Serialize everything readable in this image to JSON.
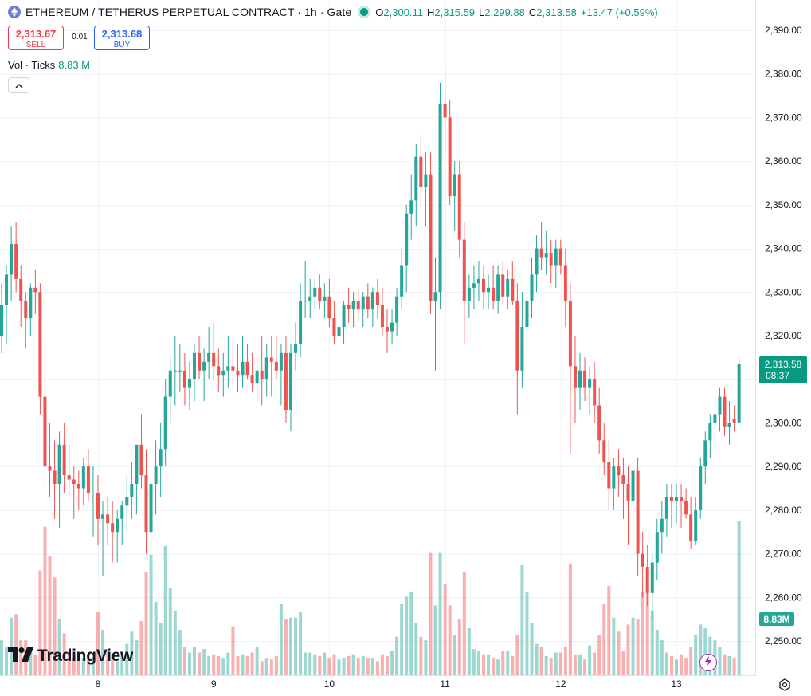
{
  "legend": {
    "symbol_title": "ETHEREUM / TETHERUS PERPETUAL CONTRACT · 1h · Gate",
    "open_label": "O",
    "open_value": "2,300.11",
    "high_label": "H",
    "high_value": "2,315.59",
    "low_label": "L",
    "low_value": "2,299.88",
    "close_label": "C",
    "close_value": "2,313.58",
    "change": "+13.47 (+0.59%)"
  },
  "trade": {
    "sell_price": "2,313.67",
    "sell_label": "SELL",
    "spread": "0.01",
    "buy_price": "2,313.68",
    "buy_label": "BUY"
  },
  "volume_legend": {
    "label": "Vol · Ticks",
    "value": "8.83 M"
  },
  "branding": {
    "logo_text": "TradingView"
  },
  "price_tag": {
    "price": "2,313.58",
    "countdown": "08:37"
  },
  "volume_tag": {
    "value": "8.83M"
  },
  "colors": {
    "up": "#26a69a",
    "down": "#ef5350",
    "up_volume": "#26a69a",
    "down_volume": "#ef5350",
    "last_price": "#089981"
  },
  "chart_data": {
    "type": "candlestick",
    "timeframe": "1h",
    "ylim": [
      2245,
      2393
    ],
    "y_ticks": [
      2250,
      2260,
      2270,
      2280,
      2290,
      2300,
      2310,
      2320,
      2330,
      2340,
      2350,
      2360,
      2370,
      2380,
      2390
    ],
    "y_tick_labels": [
      "2,250.00",
      "2,260.00",
      "2,270.00",
      "2,280.00",
      "2,290.00",
      "2,300.00",
      "2,310.00",
      "2,320.00",
      "2,330.00",
      "2,340.00",
      "2,350.00",
      "2,360.00",
      "2,370.00",
      "2,380.00",
      "2,390.00"
    ],
    "x_ticks": [
      {
        "label": "8",
        "bar": 20
      },
      {
        "label": "9",
        "bar": 44
      },
      {
        "label": "10",
        "bar": 68
      },
      {
        "label": "11",
        "bar": 92
      },
      {
        "label": "12",
        "bar": 116
      },
      {
        "label": "13",
        "bar": 140
      }
    ],
    "last_price": 2313.58,
    "grid": true,
    "bars": [
      {
        "o": 2320,
        "h": 2332,
        "l": 2316,
        "c": 2327,
        "v": 2.0
      },
      {
        "o": 2327,
        "h": 2336,
        "l": 2318,
        "c": 2334,
        "v": 1.6
      },
      {
        "o": 2334,
        "h": 2345,
        "l": 2328,
        "c": 2341,
        "v": 3.3
      },
      {
        "o": 2341,
        "h": 2346,
        "l": 2330,
        "c": 2333,
        "v": 3.5
      },
      {
        "o": 2333,
        "h": 2336,
        "l": 2322,
        "c": 2328,
        "v": 2.0
      },
      {
        "o": 2328,
        "h": 2330,
        "l": 2317,
        "c": 2324,
        "v": 2.0
      },
      {
        "o": 2324,
        "h": 2332,
        "l": 2320,
        "c": 2331,
        "v": 1.4
      },
      {
        "o": 2331,
        "h": 2335,
        "l": 2325,
        "c": 2330,
        "v": 1.2
      },
      {
        "o": 2330,
        "h": 2332,
        "l": 2302,
        "c": 2306,
        "v": 6.0
      },
      {
        "o": 2306,
        "h": 2318,
        "l": 2285,
        "c": 2290,
        "v": 8.5
      },
      {
        "o": 2290,
        "h": 2300,
        "l": 2283,
        "c": 2289,
        "v": 6.8
      },
      {
        "o": 2289,
        "h": 2296,
        "l": 2278,
        "c": 2286,
        "v": 5.6
      },
      {
        "o": 2286,
        "h": 2298,
        "l": 2276,
        "c": 2295,
        "v": 3.2
      },
      {
        "o": 2295,
        "h": 2300,
        "l": 2284,
        "c": 2288,
        "v": 2.4
      },
      {
        "o": 2288,
        "h": 2295,
        "l": 2283,
        "c": 2287,
        "v": 1.4
      },
      {
        "o": 2287,
        "h": 2290,
        "l": 2278,
        "c": 2286,
        "v": 1.0
      },
      {
        "o": 2286,
        "h": 2289,
        "l": 2280,
        "c": 2285,
        "v": 1.2
      },
      {
        "o": 2285,
        "h": 2292,
        "l": 2281,
        "c": 2290,
        "v": 1.0
      },
      {
        "o": 2290,
        "h": 2294,
        "l": 2282,
        "c": 2284,
        "v": 0.9
      },
      {
        "o": 2284,
        "h": 2290,
        "l": 2274,
        "c": 2284,
        "v": 0.8
      },
      {
        "o": 2284,
        "h": 2288,
        "l": 2272,
        "c": 2278,
        "v": 3.6
      },
      {
        "o": 2278,
        "h": 2282,
        "l": 2265,
        "c": 2279,
        "v": 2.6
      },
      {
        "o": 2279,
        "h": 2283,
        "l": 2272,
        "c": 2277,
        "v": 1.4
      },
      {
        "o": 2277,
        "h": 2282,
        "l": 2268,
        "c": 2275,
        "v": 1.2
      },
      {
        "o": 2275,
        "h": 2280,
        "l": 2268,
        "c": 2278,
        "v": 0.8
      },
      {
        "o": 2278,
        "h": 2282,
        "l": 2272,
        "c": 2281,
        "v": 1.2
      },
      {
        "o": 2281,
        "h": 2288,
        "l": 2275,
        "c": 2283,
        "v": 1.8
      },
      {
        "o": 2283,
        "h": 2291,
        "l": 2278,
        "c": 2286,
        "v": 2.5
      },
      {
        "o": 2286,
        "h": 2295,
        "l": 2279,
        "c": 2295,
        "v": 2.0
      },
      {
        "o": 2295,
        "h": 2302,
        "l": 2285,
        "c": 2288,
        "v": 3.1
      },
      {
        "o": 2288,
        "h": 2294,
        "l": 2270,
        "c": 2275,
        "v": 5.9
      },
      {
        "o": 2275,
        "h": 2288,
        "l": 2272,
        "c": 2286,
        "v": 6.9
      },
      {
        "o": 2286,
        "h": 2296,
        "l": 2279,
        "c": 2290,
        "v": 4.2
      },
      {
        "o": 2290,
        "h": 2300,
        "l": 2283,
        "c": 2294,
        "v": 3.0
      },
      {
        "o": 2294,
        "h": 2310,
        "l": 2290,
        "c": 2306,
        "v": 7.4
      },
      {
        "o": 2306,
        "h": 2315,
        "l": 2300,
        "c": 2312,
        "v": 5.0
      },
      {
        "o": 2312,
        "h": 2320,
        "l": 2304,
        "c": 2312,
        "v": 3.7
      },
      {
        "o": 2312,
        "h": 2318,
        "l": 2307,
        "c": 2312,
        "v": 2.6
      },
      {
        "o": 2312,
        "h": 2316,
        "l": 2304,
        "c": 2308,
        "v": 1.6
      },
      {
        "o": 2308,
        "h": 2314,
        "l": 2303,
        "c": 2310,
        "v": 1.3
      },
      {
        "o": 2310,
        "h": 2318,
        "l": 2305,
        "c": 2316,
        "v": 1.6
      },
      {
        "o": 2316,
        "h": 2320,
        "l": 2310,
        "c": 2312,
        "v": 1.3
      },
      {
        "o": 2312,
        "h": 2317,
        "l": 2305,
        "c": 2314,
        "v": 1.5
      },
      {
        "o": 2314,
        "h": 2322,
        "l": 2310,
        "c": 2316,
        "v": 1.1
      },
      {
        "o": 2316,
        "h": 2323,
        "l": 2310,
        "c": 2313,
        "v": 1.2
      },
      {
        "o": 2313,
        "h": 2317,
        "l": 2307,
        "c": 2311,
        "v": 1.1
      },
      {
        "o": 2311,
        "h": 2316,
        "l": 2306,
        "c": 2312,
        "v": 1.0
      },
      {
        "o": 2312,
        "h": 2320,
        "l": 2308,
        "c": 2313,
        "v": 1.3
      },
      {
        "o": 2313,
        "h": 2319,
        "l": 2308,
        "c": 2312,
        "v": 2.8
      },
      {
        "o": 2312,
        "h": 2318,
        "l": 2307,
        "c": 2311,
        "v": 1.1
      },
      {
        "o": 2311,
        "h": 2320,
        "l": 2308,
        "c": 2314,
        "v": 1.2
      },
      {
        "o": 2314,
        "h": 2318,
        "l": 2310,
        "c": 2311,
        "v": 1.1
      },
      {
        "o": 2311,
        "h": 2316,
        "l": 2307,
        "c": 2309,
        "v": 1.3
      },
      {
        "o": 2309,
        "h": 2315,
        "l": 2305,
        "c": 2312,
        "v": 1.6
      },
      {
        "o": 2312,
        "h": 2320,
        "l": 2304,
        "c": 2310,
        "v": 0.8
      },
      {
        "o": 2310,
        "h": 2318,
        "l": 2306,
        "c": 2315,
        "v": 1.0
      },
      {
        "o": 2315,
        "h": 2320,
        "l": 2306,
        "c": 2314,
        "v": 0.9
      },
      {
        "o": 2314,
        "h": 2320,
        "l": 2310,
        "c": 2312,
        "v": 1.1
      },
      {
        "o": 2312,
        "h": 2318,
        "l": 2304,
        "c": 2316,
        "v": 4.1
      },
      {
        "o": 2316,
        "h": 2320,
        "l": 2300,
        "c": 2303,
        "v": 3.2
      },
      {
        "o": 2303,
        "h": 2318,
        "l": 2298,
        "c": 2316,
        "v": 3.3
      },
      {
        "o": 2316,
        "h": 2323,
        "l": 2312,
        "c": 2318,
        "v": 3.3
      },
      {
        "o": 2318,
        "h": 2332,
        "l": 2315,
        "c": 2328,
        "v": 3.6
      },
      {
        "o": 2328,
        "h": 2337,
        "l": 2324,
        "c": 2328,
        "v": 1.3
      },
      {
        "o": 2328,
        "h": 2333,
        "l": 2324,
        "c": 2329,
        "v": 1.3
      },
      {
        "o": 2329,
        "h": 2333,
        "l": 2326,
        "c": 2331,
        "v": 1.2
      },
      {
        "o": 2331,
        "h": 2334,
        "l": 2326,
        "c": 2328,
        "v": 1.1
      },
      {
        "o": 2328,
        "h": 2332,
        "l": 2324,
        "c": 2329,
        "v": 1.3
      },
      {
        "o": 2329,
        "h": 2333,
        "l": 2322,
        "c": 2324,
        "v": 1.0
      },
      {
        "o": 2324,
        "h": 2328,
        "l": 2318,
        "c": 2320,
        "v": 1.2
      },
      {
        "o": 2320,
        "h": 2325,
        "l": 2316,
        "c": 2322,
        "v": 0.9
      },
      {
        "o": 2322,
        "h": 2328,
        "l": 2318,
        "c": 2327,
        "v": 1.0
      },
      {
        "o": 2327,
        "h": 2331,
        "l": 2323,
        "c": 2326,
        "v": 1.1
      },
      {
        "o": 2326,
        "h": 2330,
        "l": 2322,
        "c": 2328,
        "v": 1.2
      },
      {
        "o": 2328,
        "h": 2331,
        "l": 2323,
        "c": 2326,
        "v": 1.0
      },
      {
        "o": 2326,
        "h": 2330,
        "l": 2322,
        "c": 2329,
        "v": 1.1
      },
      {
        "o": 2329,
        "h": 2332,
        "l": 2324,
        "c": 2326,
        "v": 1.0
      },
      {
        "o": 2326,
        "h": 2331,
        "l": 2322,
        "c": 2330,
        "v": 1.0
      },
      {
        "o": 2330,
        "h": 2333,
        "l": 2324,
        "c": 2327,
        "v": 0.8
      },
      {
        "o": 2327,
        "h": 2331,
        "l": 2320,
        "c": 2322,
        "v": 1.2
      },
      {
        "o": 2322,
        "h": 2326,
        "l": 2316,
        "c": 2321,
        "v": 1.1
      },
      {
        "o": 2321,
        "h": 2326,
        "l": 2318,
        "c": 2323,
        "v": 1.4
      },
      {
        "o": 2323,
        "h": 2331,
        "l": 2320,
        "c": 2329,
        "v": 2.2
      },
      {
        "o": 2329,
        "h": 2340,
        "l": 2326,
        "c": 2336,
        "v": 4.1
      },
      {
        "o": 2336,
        "h": 2350,
        "l": 2330,
        "c": 2348,
        "v": 4.5
      },
      {
        "o": 2348,
        "h": 2357,
        "l": 2342,
        "c": 2351,
        "v": 4.8
      },
      {
        "o": 2351,
        "h": 2364,
        "l": 2345,
        "c": 2361,
        "v": 3.0
      },
      {
        "o": 2361,
        "h": 2366,
        "l": 2350,
        "c": 2354,
        "v": 2.2
      },
      {
        "o": 2354,
        "h": 2362,
        "l": 2345,
        "c": 2357,
        "v": 2.0
      },
      {
        "o": 2357,
        "h": 2362,
        "l": 2325,
        "c": 2328,
        "v": 7.0
      },
      {
        "o": 2328,
        "h": 2338,
        "l": 2312,
        "c": 2330,
        "v": 4.0
      },
      {
        "o": 2330,
        "h": 2378,
        "l": 2326,
        "c": 2373,
        "v": 7.0
      },
      {
        "o": 2373,
        "h": 2381,
        "l": 2362,
        "c": 2370,
        "v": 5.2
      },
      {
        "o": 2370,
        "h": 2374,
        "l": 2350,
        "c": 2352,
        "v": 4.0
      },
      {
        "o": 2352,
        "h": 2360,
        "l": 2344,
        "c": 2357,
        "v": 2.3
      },
      {
        "o": 2357,
        "h": 2360,
        "l": 2338,
        "c": 2342,
        "v": 3.2
      },
      {
        "o": 2342,
        "h": 2346,
        "l": 2318,
        "c": 2328,
        "v": 5.9
      },
      {
        "o": 2328,
        "h": 2334,
        "l": 2324,
        "c": 2331,
        "v": 2.7
      },
      {
        "o": 2331,
        "h": 2336,
        "l": 2326,
        "c": 2332,
        "v": 1.5
      },
      {
        "o": 2332,
        "h": 2337,
        "l": 2328,
        "c": 2333,
        "v": 1.4
      },
      {
        "o": 2333,
        "h": 2336,
        "l": 2326,
        "c": 2330,
        "v": 1.2
      },
      {
        "o": 2330,
        "h": 2334,
        "l": 2326,
        "c": 2331,
        "v": 1.2
      },
      {
        "o": 2331,
        "h": 2336,
        "l": 2326,
        "c": 2328,
        "v": 1.0
      },
      {
        "o": 2328,
        "h": 2336,
        "l": 2325,
        "c": 2334,
        "v": 0.9
      },
      {
        "o": 2334,
        "h": 2337,
        "l": 2327,
        "c": 2329,
        "v": 1.4
      },
      {
        "o": 2329,
        "h": 2335,
        "l": 2326,
        "c": 2333,
        "v": 1.4
      },
      {
        "o": 2333,
        "h": 2337,
        "l": 2327,
        "c": 2328,
        "v": 1.1
      },
      {
        "o": 2328,
        "h": 2332,
        "l": 2302,
        "c": 2312,
        "v": 2.3
      },
      {
        "o": 2312,
        "h": 2330,
        "l": 2308,
        "c": 2322,
        "v": 6.3
      },
      {
        "o": 2322,
        "h": 2332,
        "l": 2318,
        "c": 2328,
        "v": 4.8
      },
      {
        "o": 2328,
        "h": 2338,
        "l": 2324,
        "c": 2334,
        "v": 3.0
      },
      {
        "o": 2334,
        "h": 2343,
        "l": 2330,
        "c": 2340,
        "v": 1.8
      },
      {
        "o": 2340,
        "h": 2346,
        "l": 2335,
        "c": 2338,
        "v": 1.6
      },
      {
        "o": 2338,
        "h": 2344,
        "l": 2334,
        "c": 2339,
        "v": 1.1
      },
      {
        "o": 2339,
        "h": 2342,
        "l": 2332,
        "c": 2336,
        "v": 1.0
      },
      {
        "o": 2336,
        "h": 2342,
        "l": 2331,
        "c": 2340,
        "v": 1.3
      },
      {
        "o": 2340,
        "h": 2342,
        "l": 2334,
        "c": 2336,
        "v": 1.3
      },
      {
        "o": 2336,
        "h": 2340,
        "l": 2322,
        "c": 2328,
        "v": 1.6
      },
      {
        "o": 2328,
        "h": 2332,
        "l": 2293,
        "c": 2313,
        "v": 6.4
      },
      {
        "o": 2313,
        "h": 2320,
        "l": 2300,
        "c": 2308,
        "v": 1.2
      },
      {
        "o": 2308,
        "h": 2316,
        "l": 2303,
        "c": 2312,
        "v": 1.2
      },
      {
        "o": 2312,
        "h": 2315,
        "l": 2305,
        "c": 2308,
        "v": 0.9
      },
      {
        "o": 2308,
        "h": 2313,
        "l": 2302,
        "c": 2310,
        "v": 1.7
      },
      {
        "o": 2310,
        "h": 2314,
        "l": 2300,
        "c": 2304,
        "v": 1.3
      },
      {
        "o": 2304,
        "h": 2308,
        "l": 2293,
        "c": 2296,
        "v": 2.3
      },
      {
        "o": 2296,
        "h": 2300,
        "l": 2288,
        "c": 2291,
        "v": 4.1
      },
      {
        "o": 2291,
        "h": 2296,
        "l": 2280,
        "c": 2285,
        "v": 5.1
      },
      {
        "o": 2285,
        "h": 2292,
        "l": 2280,
        "c": 2290,
        "v": 3.3
      },
      {
        "o": 2290,
        "h": 2294,
        "l": 2283,
        "c": 2288,
        "v": 2.5
      },
      {
        "o": 2288,
        "h": 2292,
        "l": 2278,
        "c": 2286,
        "v": 1.4
      },
      {
        "o": 2286,
        "h": 2290,
        "l": 2272,
        "c": 2282,
        "v": 2.9
      },
      {
        "o": 2282,
        "h": 2292,
        "l": 2278,
        "c": 2289,
        "v": 3.3
      },
      {
        "o": 2289,
        "h": 2292,
        "l": 2265,
        "c": 2270,
        "v": 3.2
      },
      {
        "o": 2270,
        "h": 2275,
        "l": 2260,
        "c": 2267,
        "v": 4.8
      },
      {
        "o": 2267,
        "h": 2272,
        "l": 2258,
        "c": 2261,
        "v": 5.3
      },
      {
        "o": 2261,
        "h": 2270,
        "l": 2255,
        "c": 2268,
        "v": 3.7
      },
      {
        "o": 2268,
        "h": 2278,
        "l": 2264,
        "c": 2275,
        "v": 2.6
      },
      {
        "o": 2275,
        "h": 2282,
        "l": 2270,
        "c": 2278,
        "v": 2.0
      },
      {
        "o": 2278,
        "h": 2286,
        "l": 2274,
        "c": 2283,
        "v": 1.3
      },
      {
        "o": 2283,
        "h": 2286,
        "l": 2276,
        "c": 2282,
        "v": 1.1
      },
      {
        "o": 2282,
        "h": 2286,
        "l": 2277,
        "c": 2283,
        "v": 0.9
      },
      {
        "o": 2283,
        "h": 2286,
        "l": 2276,
        "c": 2282,
        "v": 1.2
      },
      {
        "o": 2282,
        "h": 2285,
        "l": 2278,
        "c": 2279,
        "v": 1.0
      },
      {
        "o": 2279,
        "h": 2283,
        "l": 2271,
        "c": 2273,
        "v": 1.6
      },
      {
        "o": 2273,
        "h": 2283,
        "l": 2272,
        "c": 2280,
        "v": 2.3
      },
      {
        "o": 2280,
        "h": 2292,
        "l": 2278,
        "c": 2290,
        "v": 2.9
      },
      {
        "o": 2290,
        "h": 2298,
        "l": 2286,
        "c": 2296,
        "v": 2.7
      },
      {
        "o": 2296,
        "h": 2302,
        "l": 2292,
        "c": 2300,
        "v": 2.2
      },
      {
        "o": 2300,
        "h": 2305,
        "l": 2294,
        "c": 2302,
        "v": 2.0
      },
      {
        "o": 2302,
        "h": 2308,
        "l": 2298,
        "c": 2306,
        "v": 1.6
      },
      {
        "o": 2306,
        "h": 2308,
        "l": 2297,
        "c": 2299,
        "v": 1.2
      },
      {
        "o": 2299,
        "h": 2305,
        "l": 2295,
        "c": 2300,
        "v": 1.1
      },
      {
        "o": 2301,
        "h": 2304,
        "l": 2298,
        "c": 2300,
        "v": 1.0
      },
      {
        "o": 2300.11,
        "h": 2315.59,
        "l": 2299.88,
        "c": 2313.58,
        "v": 8.83
      }
    ]
  }
}
